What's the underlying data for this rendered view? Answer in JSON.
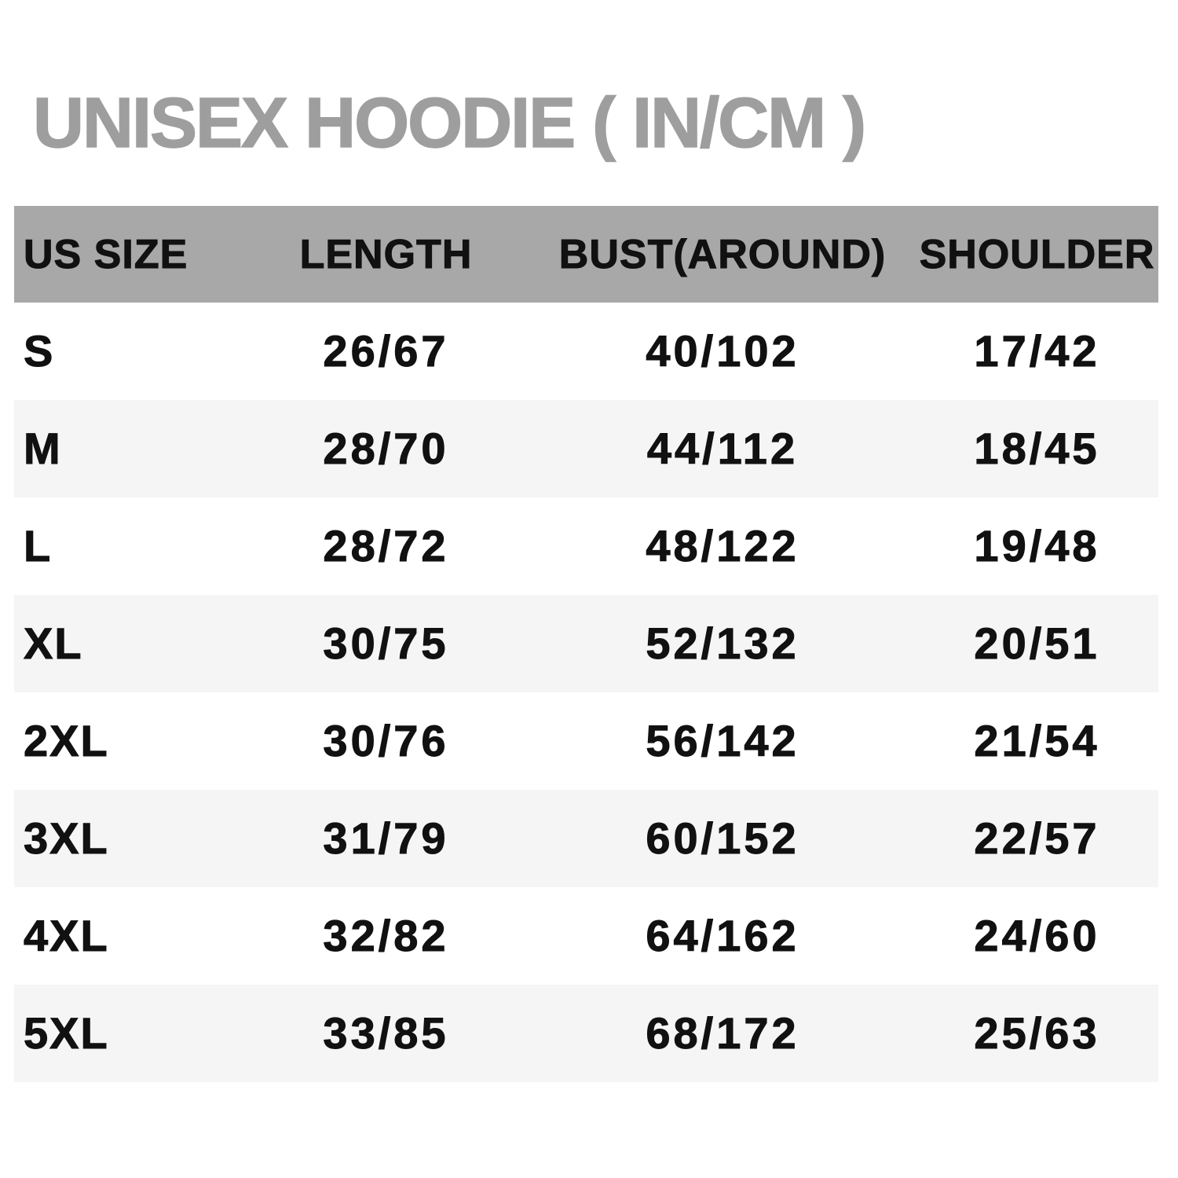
{
  "title": "UNISEX HOODIE ( IN/CM )",
  "colors": {
    "title_color": "#9e9e9e",
    "header_bg": "#a8a8a8",
    "row_alt_bg": "#f5f5f5",
    "text_color": "#111111"
  },
  "chart_data": {
    "type": "table",
    "title": "UNISEX HOODIE ( IN/CM )",
    "units": "IN/CM",
    "headers": [
      "US SIZE",
      "LENGTH",
      "BUST(AROUND)",
      "SHOULDER"
    ],
    "rows": [
      {
        "us_size": "S",
        "length": "26/67",
        "bust_around": "40/102",
        "shoulder": "17/42"
      },
      {
        "us_size": "M",
        "length": "28/70",
        "bust_around": "44/112",
        "shoulder": "18/45"
      },
      {
        "us_size": "L",
        "length": "28/72",
        "bust_around": "48/122",
        "shoulder": "19/48"
      },
      {
        "us_size": "XL",
        "length": "30/75",
        "bust_around": "52/132",
        "shoulder": "20/51"
      },
      {
        "us_size": "2XL",
        "length": "30/76",
        "bust_around": "56/142",
        "shoulder": "21/54"
      },
      {
        "us_size": "3XL",
        "length": "31/79",
        "bust_around": "60/152",
        "shoulder": "22/57"
      },
      {
        "us_size": "4XL",
        "length": "32/82",
        "bust_around": "64/162",
        "shoulder": "24/60"
      },
      {
        "us_size": "5XL",
        "length": "33/85",
        "bust_around": "68/172",
        "shoulder": "25/63"
      }
    ]
  }
}
